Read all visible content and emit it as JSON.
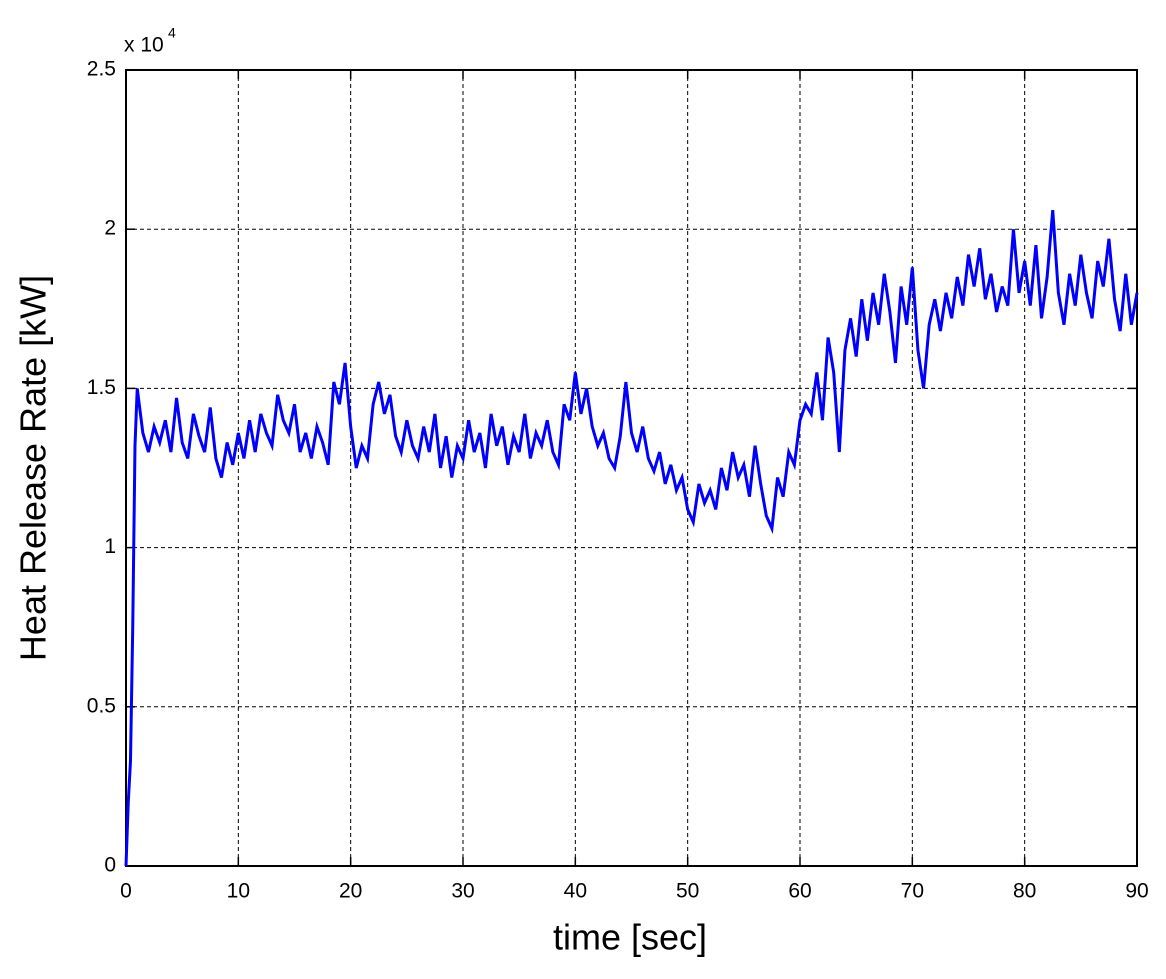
{
  "chart_data": {
    "type": "line",
    "xlabel": "time [sec]",
    "ylabel": "Heat Release Rate [kW]",
    "y_multiplier": {
      "base": "x 10",
      "exponent": "4"
    },
    "color": "#0000ff",
    "grid": true,
    "xlim": [
      0,
      90
    ],
    "xticks": [
      0,
      10,
      20,
      30,
      40,
      50,
      60,
      70,
      80,
      90
    ],
    "ylim": [
      0,
      2.5
    ],
    "yticks": [
      0,
      0.5,
      1,
      1.5,
      2,
      2.5
    ],
    "x": [
      0,
      0.2,
      0.4,
      0.6,
      0.8,
      1,
      1.5,
      2,
      2.5,
      3,
      3.5,
      4,
      4.5,
      5,
      5.5,
      6,
      6.5,
      7,
      7.5,
      8,
      8.5,
      9,
      9.5,
      10,
      10.5,
      11,
      11.5,
      12,
      12.5,
      13,
      13.5,
      14,
      14.5,
      15,
      15.5,
      16,
      16.5,
      17,
      17.5,
      18,
      18.5,
      19,
      19.5,
      20,
      20.5,
      21,
      21.5,
      22,
      22.5,
      23,
      23.5,
      24,
      24.5,
      25,
      25.5,
      26,
      26.5,
      27,
      27.5,
      28,
      28.5,
      29,
      29.5,
      30,
      30.5,
      31,
      31.5,
      32,
      32.5,
      33,
      33.5,
      34,
      34.5,
      35,
      35.5,
      36,
      36.5,
      37,
      37.5,
      38,
      38.5,
      39,
      39.5,
      40,
      40.5,
      41,
      41.5,
      42,
      42.5,
      43,
      43.5,
      44,
      44.5,
      45,
      45.5,
      46,
      46.5,
      47,
      47.5,
      48,
      48.5,
      49,
      49.5,
      50,
      50.5,
      51,
      51.5,
      52,
      52.5,
      53,
      53.5,
      54,
      54.5,
      55,
      55.5,
      56,
      56.5,
      57,
      57.5,
      58,
      58.5,
      59,
      59.5,
      60,
      60.5,
      61,
      61.5,
      62,
      62.5,
      63,
      63.5,
      64,
      64.5,
      65,
      65.5,
      66,
      66.5,
      67,
      67.5,
      68,
      68.5,
      69,
      69.5,
      70,
      70.5,
      71,
      71.5,
      72,
      72.5,
      73,
      73.5,
      74,
      74.5,
      75,
      75.5,
      76,
      76.5,
      77,
      77.5,
      78,
      78.5,
      79,
      79.5,
      80,
      80.5,
      81,
      81.5,
      82,
      82.5,
      83,
      83.5,
      84,
      84.5,
      85,
      85.5,
      86,
      86.5,
      87,
      87.5,
      88,
      88.5,
      89,
      89.5,
      90
    ],
    "values": [
      0,
      0.2,
      0.33,
      0.75,
      1.32,
      1.5,
      1.36,
      1.3,
      1.38,
      1.33,
      1.4,
      1.3,
      1.47,
      1.33,
      1.28,
      1.42,
      1.35,
      1.3,
      1.44,
      1.28,
      1.22,
      1.33,
      1.26,
      1.36,
      1.28,
      1.4,
      1.3,
      1.42,
      1.36,
      1.32,
      1.48,
      1.4,
      1.36,
      1.45,
      1.3,
      1.36,
      1.28,
      1.38,
      1.33,
      1.26,
      1.52,
      1.45,
      1.58,
      1.38,
      1.25,
      1.32,
      1.28,
      1.45,
      1.52,
      1.42,
      1.48,
      1.35,
      1.3,
      1.4,
      1.32,
      1.28,
      1.38,
      1.3,
      1.42,
      1.25,
      1.35,
      1.22,
      1.32,
      1.28,
      1.4,
      1.3,
      1.36,
      1.25,
      1.42,
      1.32,
      1.38,
      1.26,
      1.35,
      1.3,
      1.42,
      1.28,
      1.36,
      1.32,
      1.4,
      1.3,
      1.26,
      1.45,
      1.4,
      1.55,
      1.42,
      1.5,
      1.38,
      1.32,
      1.36,
      1.28,
      1.25,
      1.35,
      1.52,
      1.36,
      1.3,
      1.38,
      1.28,
      1.24,
      1.3,
      1.2,
      1.26,
      1.18,
      1.22,
      1.12,
      1.08,
      1.2,
      1.14,
      1.18,
      1.12,
      1.25,
      1.18,
      1.3,
      1.22,
      1.26,
      1.16,
      1.32,
      1.2,
      1.1,
      1.06,
      1.22,
      1.16,
      1.3,
      1.26,
      1.4,
      1.45,
      1.42,
      1.55,
      1.4,
      1.66,
      1.55,
      1.3,
      1.62,
      1.72,
      1.6,
      1.78,
      1.65,
      1.8,
      1.7,
      1.86,
      1.74,
      1.58,
      1.82,
      1.7,
      1.88,
      1.62,
      1.5,
      1.7,
      1.78,
      1.68,
      1.8,
      1.72,
      1.85,
      1.76,
      1.92,
      1.82,
      1.94,
      1.78,
      1.86,
      1.74,
      1.82,
      1.76,
      2.0,
      1.8,
      1.9,
      1.76,
      1.95,
      1.72,
      1.85,
      2.06,
      1.8,
      1.7,
      1.86,
      1.76,
      1.92,
      1.8,
      1.72,
      1.9,
      1.82,
      1.97,
      1.78,
      1.68,
      1.86,
      1.7,
      1.8
    ]
  }
}
